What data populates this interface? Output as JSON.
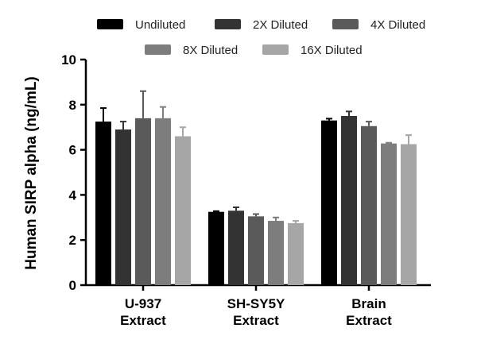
{
  "chart_data": {
    "type": "bar",
    "title": "",
    "xlabel": "",
    "ylabel": "Human SIRP alpha (ng/mL)",
    "ylim": [
      0,
      10
    ],
    "yticks": [
      0,
      2,
      4,
      6,
      8,
      10
    ],
    "categories": [
      [
        "U-937",
        "Extract"
      ],
      [
        "SH-SY5Y",
        "Extract"
      ],
      [
        "Brain",
        "Extract"
      ]
    ],
    "legend_position": "top",
    "grid": false,
    "series": [
      {
        "name": "Undiluted",
        "color": "#000000",
        "values": [
          7.25,
          3.25,
          7.3
        ],
        "errors": [
          0.6,
          0.03,
          0.08
        ]
      },
      {
        "name": "2X Diluted",
        "color": "#333333",
        "values": [
          6.9,
          3.3,
          7.5
        ],
        "errors": [
          0.35,
          0.15,
          0.2
        ]
      },
      {
        "name": "4X Diluted",
        "color": "#5a5a5a",
        "values": [
          7.4,
          3.05,
          7.05
        ],
        "errors": [
          1.2,
          0.1,
          0.2
        ]
      },
      {
        "name": "8X Diluted",
        "color": "#7d7d7d",
        "values": [
          7.4,
          2.85,
          6.28
        ],
        "errors": [
          0.5,
          0.15,
          0.03
        ]
      },
      {
        "name": "16X Diluted",
        "color": "#a6a6a6",
        "values": [
          6.6,
          2.75,
          6.25
        ],
        "errors": [
          0.4,
          0.1,
          0.4
        ]
      }
    ]
  }
}
